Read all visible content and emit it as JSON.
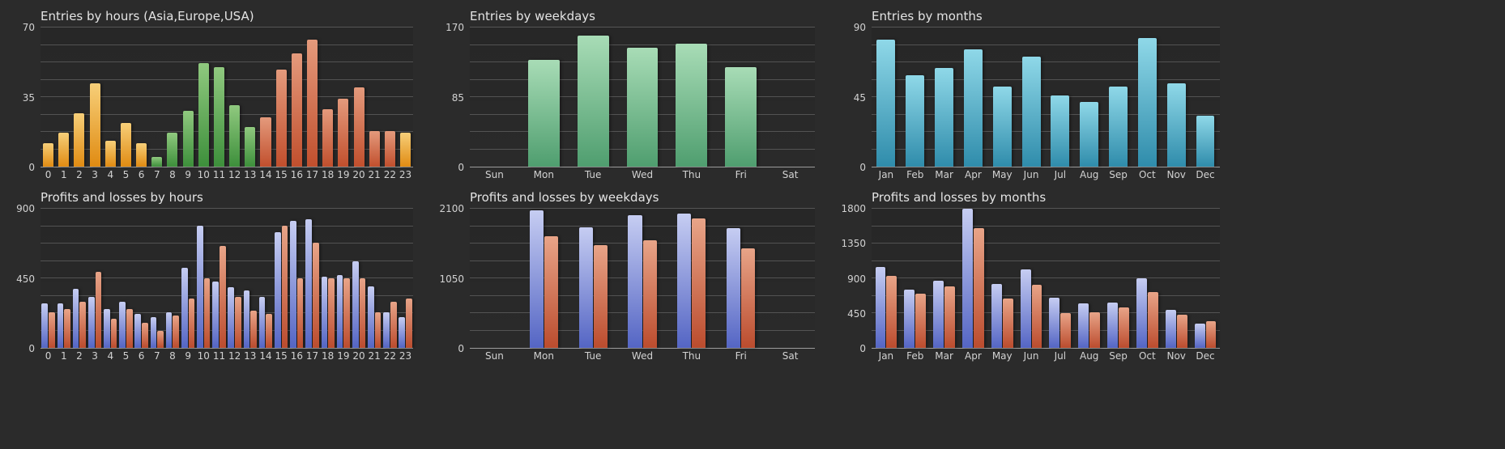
{
  "page": {
    "background": "#2b2b2b"
  },
  "palette": {
    "asia": {
      "top": "#f7cf79",
      "bottom": "#e08b12"
    },
    "europe": {
      "top": "#90c97f",
      "bottom": "#3d8f3b"
    },
    "usa": {
      "top": "#e49a7c",
      "bottom": "#c14f2d"
    },
    "weekday_green": {
      "top": "#a8dcb6",
      "bottom": "#4f9e6f"
    },
    "month_cyan": {
      "top": "#8fd8e8",
      "bottom": "#2f8cab"
    },
    "profit_blue": {
      "top": "#c6cdf2",
      "bottom": "#5465c4"
    },
    "loss_red": {
      "top": "#e8a488",
      "bottom": "#bb4c2e"
    }
  },
  "chart_data": [
    {
      "type": "bar",
      "title": "Entries by hours (Asia,Europe,USA)",
      "xlabel": "",
      "ylabel": "",
      "ylim": [
        0,
        70
      ],
      "yticks": [
        0,
        35,
        70
      ],
      "grid": true,
      "grid_divisions": 8,
      "legend": "none",
      "bar_pct": 68,
      "categories": [
        "0",
        "1",
        "2",
        "3",
        "4",
        "5",
        "6",
        "7",
        "8",
        "9",
        "10",
        "11",
        "12",
        "13",
        "14",
        "15",
        "16",
        "17",
        "18",
        "19",
        "20",
        "21",
        "22",
        "23"
      ],
      "series": [
        {
          "name": "entries",
          "values": [
            12,
            17,
            27,
            42,
            13,
            22,
            12,
            5,
            17,
            28,
            52,
            50,
            31,
            20,
            25,
            49,
            57,
            64,
            29,
            34,
            40,
            18,
            18,
            17
          ],
          "color_keys": [
            "asia",
            "asia",
            "asia",
            "asia",
            "asia",
            "asia",
            "asia",
            "europe",
            "europe",
            "europe",
            "europe",
            "europe",
            "europe",
            "europe",
            "usa",
            "usa",
            "usa",
            "usa",
            "usa",
            "usa",
            "usa",
            "usa",
            "usa",
            "asia"
          ]
        }
      ]
    },
    {
      "type": "bar",
      "title": "Entries by weekdays",
      "xlabel": "",
      "ylabel": "",
      "ylim": [
        0,
        170
      ],
      "yticks": [
        0,
        85,
        170
      ],
      "grid": true,
      "grid_divisions": 8,
      "legend": "none",
      "bar_pct": 64,
      "categories": [
        "Sun",
        "Mon",
        "Tue",
        "Wed",
        "Thu",
        "Fri",
        "Sat"
      ],
      "series": [
        {
          "name": "entries",
          "color": "weekday_green",
          "values": [
            0,
            130,
            160,
            145,
            150,
            122,
            0
          ]
        }
      ]
    },
    {
      "type": "bar",
      "title": "Entries by months",
      "xlabel": "",
      "ylabel": "",
      "ylim": [
        0,
        90
      ],
      "yticks": [
        0,
        45,
        90
      ],
      "grid": true,
      "grid_divisions": 8,
      "legend": "none",
      "bar_pct": 64,
      "categories": [
        "Jan",
        "Feb",
        "Mar",
        "Apr",
        "May",
        "Jun",
        "Jul",
        "Aug",
        "Sep",
        "Oct",
        "Nov",
        "Dec"
      ],
      "series": [
        {
          "name": "entries",
          "color": "month_cyan",
          "values": [
            82,
            59,
            64,
            76,
            52,
            71,
            46,
            42,
            52,
            83,
            54,
            33
          ]
        }
      ]
    },
    {
      "type": "bar",
      "title": "Profits and losses by hours",
      "xlabel": "",
      "ylabel": "",
      "ylim": [
        0,
        900
      ],
      "yticks": [
        0,
        450,
        900
      ],
      "grid": true,
      "grid_divisions": 8,
      "legend": "none",
      "bar_pct": 40,
      "categories": [
        "0",
        "1",
        "2",
        "3",
        "4",
        "5",
        "6",
        "7",
        "8",
        "9",
        "10",
        "11",
        "12",
        "13",
        "14",
        "15",
        "16",
        "17",
        "18",
        "19",
        "20",
        "21",
        "22",
        "23"
      ],
      "series": [
        {
          "name": "profit",
          "color": "profit_blue",
          "values": [
            290,
            290,
            380,
            330,
            250,
            300,
            220,
            200,
            230,
            520,
            790,
            430,
            390,
            370,
            330,
            750,
            820,
            830,
            460,
            470,
            560,
            400,
            230,
            200
          ]
        },
        {
          "name": "loss",
          "color": "loss_red",
          "values": [
            230,
            250,
            300,
            490,
            190,
            250,
            160,
            110,
            210,
            320,
            450,
            660,
            330,
            240,
            220,
            790,
            450,
            680,
            450,
            450,
            450,
            230,
            300,
            320
          ]
        }
      ]
    },
    {
      "type": "bar",
      "title": "Profits and losses by weekdays",
      "xlabel": "",
      "ylabel": "",
      "ylim": [
        0,
        2100
      ],
      "yticks": [
        0,
        1050,
        2100
      ],
      "grid": true,
      "grid_divisions": 8,
      "legend": "none",
      "bar_pct": 28,
      "categories": [
        "Sun",
        "Mon",
        "Tue",
        "Wed",
        "Thu",
        "Fri",
        "Sat"
      ],
      "series": [
        {
          "name": "profit",
          "color": "profit_blue",
          "values": [
            0,
            2080,
            1820,
            2000,
            2030,
            1810,
            0
          ]
        },
        {
          "name": "loss",
          "color": "loss_red",
          "values": [
            0,
            1680,
            1550,
            1620,
            1950,
            1500,
            0
          ]
        }
      ]
    },
    {
      "type": "bar",
      "title": "Profits and losses by months",
      "xlabel": "",
      "ylabel": "",
      "ylim": [
        0,
        1800
      ],
      "yticks": [
        0,
        450,
        900,
        1350,
        1800
      ],
      "grid": true,
      "grid_divisions": 8,
      "legend": "none",
      "bar_pct": 36,
      "categories": [
        "Jan",
        "Feb",
        "Mar",
        "Apr",
        "May",
        "Jun",
        "Jul",
        "Aug",
        "Sep",
        "Oct",
        "Nov",
        "Dec"
      ],
      "series": [
        {
          "name": "profit",
          "color": "profit_blue",
          "values": [
            1050,
            750,
            870,
            1800,
            830,
            1020,
            650,
            580,
            590,
            900,
            490,
            310
          ]
        },
        {
          "name": "loss",
          "color": "loss_red",
          "values": [
            930,
            700,
            800,
            1550,
            640,
            820,
            450,
            460,
            520,
            720,
            430,
            350
          ]
        }
      ]
    }
  ]
}
